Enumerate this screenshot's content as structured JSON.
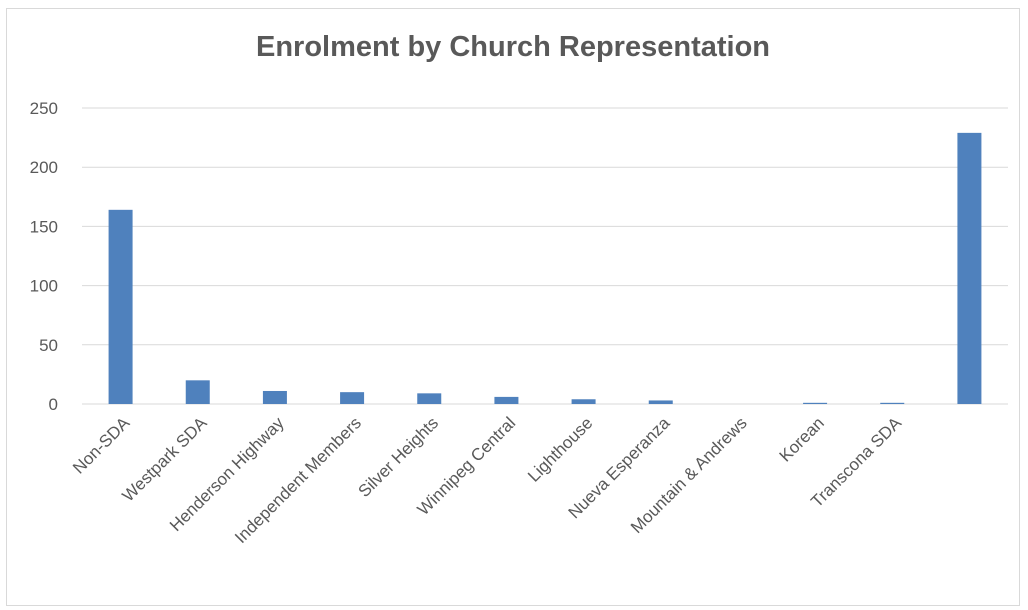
{
  "chart_data": {
    "type": "bar",
    "title": "Enrolment by Church Representation",
    "categories": [
      "Non-SDA",
      "Westpark SDA",
      "Henderson Highway",
      "Independent Members",
      "Silver Heights",
      "Winnipeg Central",
      "Lighthouse",
      "Nueva Esperanza",
      "Mountain & Andrews",
      "Korean",
      "Transcona SDA",
      ""
    ],
    "values": [
      164,
      20,
      11,
      10,
      9,
      6,
      4,
      3,
      0,
      1,
      1,
      229
    ],
    "ylim": [
      0,
      250
    ],
    "yticks": [
      0,
      50,
      100,
      150,
      200,
      250
    ],
    "xlabel": "",
    "ylabel": "",
    "grid": true,
    "legend": "none",
    "bar_color": "#4f81bd",
    "grid_color": "#d9d9d9"
  }
}
